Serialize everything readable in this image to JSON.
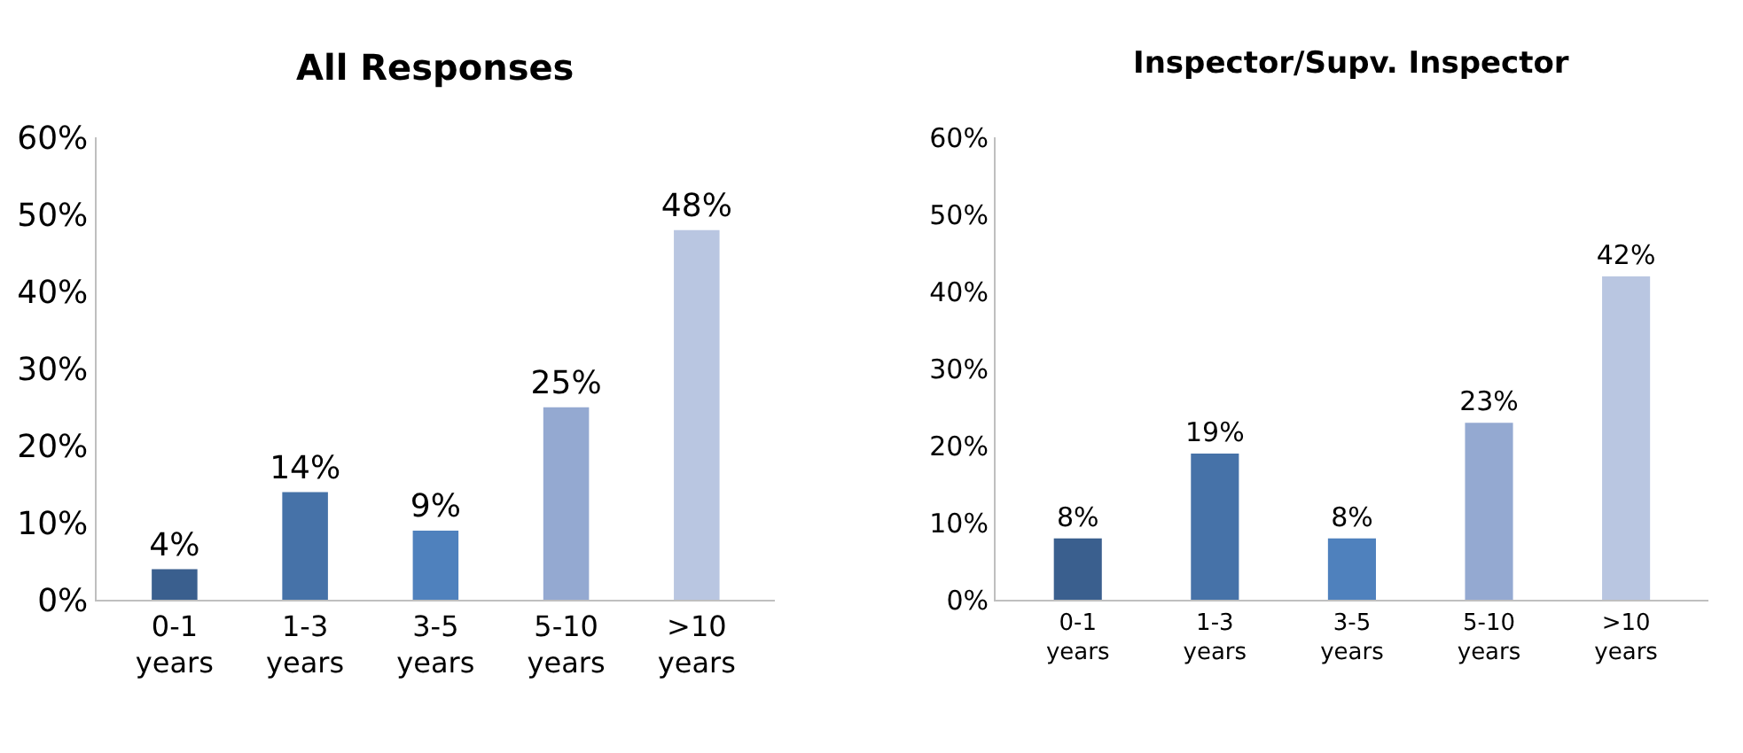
{
  "chart_data": [
    {
      "type": "bar",
      "title": "All Responses",
      "categories": [
        "0-1 years",
        "1-3 years",
        "3-5 years",
        "5-10 years",
        ">10 years"
      ],
      "values": [
        4,
        14,
        9,
        25,
        48
      ],
      "colors": [
        "#3a5f8e",
        "#4672a8",
        "#4f81bd",
        "#94a9d1",
        "#b9c6e1"
      ],
      "value_labels": [
        "4%",
        "14%",
        "9%",
        "25%",
        "48%"
      ],
      "ylim": [
        0,
        60
      ],
      "yticks": [
        {
          "value": 0,
          "label": "0%"
        },
        {
          "value": 10,
          "label": "10%"
        },
        {
          "value": 20,
          "label": "20%"
        },
        {
          "value": 30,
          "label": "30%"
        },
        {
          "value": 40,
          "label": "40%"
        },
        {
          "value": 50,
          "label": "50%"
        },
        {
          "value": 60,
          "label": "60%"
        }
      ]
    },
    {
      "type": "bar",
      "title": "Inspector/Supv. Inspector",
      "categories": [
        "0-1 years",
        "1-3 years",
        "3-5 years",
        "5-10 years",
        ">10 years"
      ],
      "values": [
        8,
        19,
        8,
        23,
        42
      ],
      "colors": [
        "#3a5f8e",
        "#4672a8",
        "#4f81bd",
        "#94a9d1",
        "#b9c6e1"
      ],
      "value_labels": [
        "8%",
        "19%",
        "8%",
        "23%",
        "42%"
      ],
      "ylim": [
        0,
        60
      ],
      "yticks": [
        {
          "value": 0,
          "label": "0%"
        },
        {
          "value": 10,
          "label": "10%"
        },
        {
          "value": 20,
          "label": "20%"
        },
        {
          "value": 30,
          "label": "30%"
        },
        {
          "value": 40,
          "label": "40%"
        },
        {
          "value": 50,
          "label": "50%"
        },
        {
          "value": 60,
          "label": "60%"
        }
      ]
    }
  ]
}
